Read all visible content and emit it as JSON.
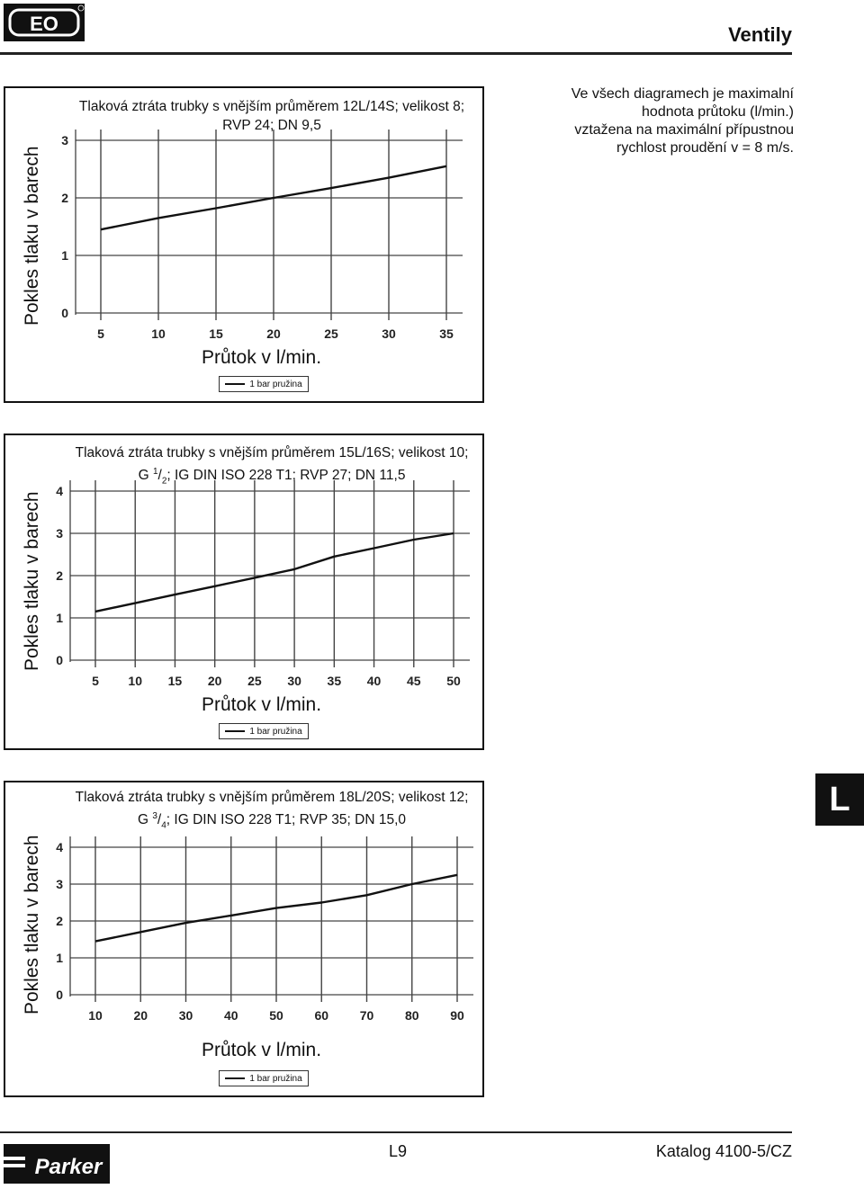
{
  "header": {
    "logo_text": "EO",
    "title": "Ventily"
  },
  "note": {
    "line1": "Ve všech diagramech je maximalní",
    "line2": "hodnota průtoku (l/min.)",
    "line3": "vztažena na maximální přípustnou",
    "line4": "rychlost proudění v = 8 m/s."
  },
  "side_tab": "L",
  "footer": {
    "logo_text": "Parker",
    "page": "L9",
    "catalog": "Katalog 4100-5/CZ"
  },
  "charts": [
    {
      "title_line1": "Tlaková ztráta trubky s vnějším průměrem 12L/14S; velikost 8;",
      "title_line2": "RVP 24; DN 9,5",
      "ylabel": "Pokles tlaku v barech",
      "xlabel": "Průtok v l/min.",
      "legend": "1 bar pružina"
    },
    {
      "title_line1": "Tlaková ztráta trubky s vnějším průměrem 15L/16S; velikost 10;",
      "title_line2_prefix": "G ",
      "title_line2_sup": "1",
      "title_line2_sub": "2",
      "title_line2_suffix": "; IG DIN ISO 228 T1; RVP 27; DN 11,5",
      "ylabel": "Pokles tlaku v barech",
      "xlabel": "Průtok v l/min.",
      "legend": "1 bar pružina"
    },
    {
      "title_line1": "Tlaková ztráta trubky s vnějším průměrem 18L/20S; velikost 12;",
      "title_line2_prefix": "G ",
      "title_line2_sup": "3",
      "title_line2_sub": "4",
      "title_line2_suffix": "; IG DIN ISO 228 T1; RVP 35; DN 15,0",
      "ylabel": "Pokles tlaku v barech",
      "xlabel": "Průtok v l/min.",
      "legend": "1 bar pružina"
    }
  ],
  "chart_data": [
    {
      "type": "line",
      "x_ticks": [
        5,
        10,
        15,
        20,
        25,
        30,
        35
      ],
      "y_ticks": [
        0,
        1,
        2,
        3
      ],
      "xlim": [
        5,
        35
      ],
      "ylim": [
        0,
        3
      ],
      "grid": true,
      "series": [
        {
          "name": "1 bar pružina",
          "x": [
            5,
            10,
            15,
            20,
            25,
            30,
            35
          ],
          "y": [
            1.45,
            1.65,
            1.82,
            2.0,
            2.17,
            2.35,
            2.55
          ]
        }
      ]
    },
    {
      "type": "line",
      "x_ticks": [
        5,
        10,
        15,
        20,
        25,
        30,
        35,
        40,
        45,
        50
      ],
      "y_ticks": [
        0,
        1,
        2,
        3,
        4
      ],
      "xlim": [
        5,
        50
      ],
      "ylim": [
        0,
        4
      ],
      "grid": true,
      "series": [
        {
          "name": "1 bar pružina",
          "x": [
            5,
            10,
            15,
            20,
            25,
            30,
            35,
            40,
            45,
            50
          ],
          "y": [
            1.15,
            1.35,
            1.55,
            1.75,
            1.95,
            2.15,
            2.45,
            2.65,
            2.85,
            3.0
          ]
        }
      ]
    },
    {
      "type": "line",
      "x_ticks": [
        10,
        20,
        30,
        40,
        50,
        60,
        70,
        80,
        90
      ],
      "y_ticks": [
        0,
        1,
        2,
        3,
        4
      ],
      "xlim": [
        10,
        90
      ],
      "ylim": [
        0,
        4
      ],
      "grid": true,
      "series": [
        {
          "name": "1 bar pružina",
          "x": [
            10,
            20,
            30,
            40,
            50,
            60,
            70,
            80,
            90
          ],
          "y": [
            1.45,
            1.7,
            1.95,
            2.15,
            2.35,
            2.5,
            2.7,
            3.0,
            3.25
          ]
        }
      ]
    }
  ]
}
